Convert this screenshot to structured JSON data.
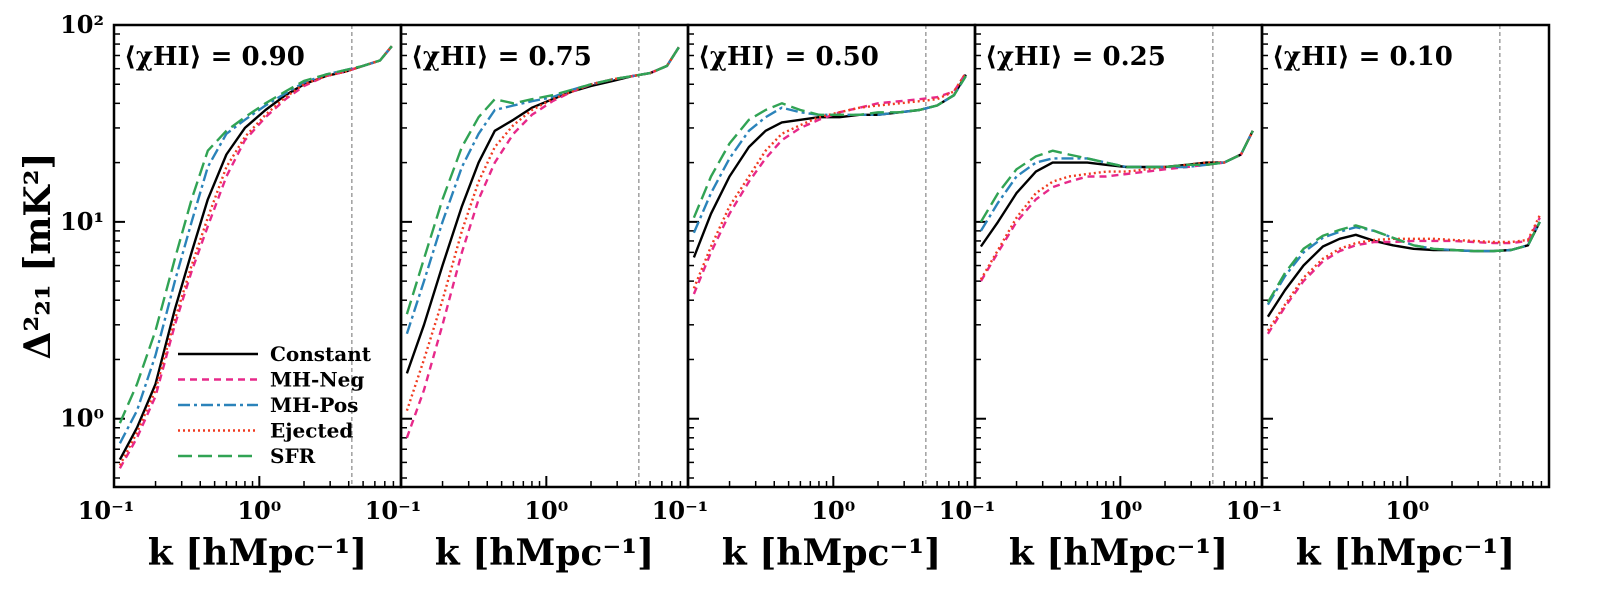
{
  "chart_data": {
    "type": "line",
    "ylabel": "Δ²₂₁ [mK²]",
    "xlabel": "k [hMpc⁻¹]",
    "xscale": "log",
    "yscale": "log",
    "xlim": [
      0.105,
      9.0
    ],
    "ylim": [
      0.45,
      100
    ],
    "x_ticks": [
      {
        "value": 0.1,
        "label": "10⁻¹"
      },
      {
        "value": 1,
        "label": "10⁰"
      }
    ],
    "y_ticks": [
      {
        "value": 1,
        "label": "10⁰"
      },
      {
        "value": 10,
        "label": "10¹"
      },
      {
        "value": 100,
        "label": "10²"
      }
    ],
    "vline_k": 4.2,
    "legend": {
      "position": "lower-right of first panel"
    },
    "series_styles": [
      {
        "name": "Constant",
        "color": "#000000",
        "dash": ""
      },
      {
        "name": "MH-Neg",
        "color": "#e7298a",
        "dash": "7,5"
      },
      {
        "name": "MH-Pos",
        "color": "#2b83ba",
        "dash": "12,4,3,4"
      },
      {
        "name": "Ejected",
        "color": "#f03b20",
        "dash": "2,3"
      },
      {
        "name": "SFR",
        "color": "#31a354",
        "dash": "14,6"
      }
    ],
    "x": [
      0.115,
      0.15,
      0.2,
      0.27,
      0.35,
      0.45,
      0.6,
      0.8,
      1.1,
      1.5,
      2,
      2.8,
      3.8,
      5,
      6.5,
      7.8
    ],
    "panels": [
      {
        "title": "⟨χHI⟩ = 0.90",
        "series": [
          {
            "name": "Constant",
            "values": [
              0.62,
              0.9,
              1.5,
              3.6,
              7,
              13,
              22,
              30,
              37,
              44,
              50,
              55,
              58,
              62,
              66,
              78
            ]
          },
          {
            "name": "MH-Neg",
            "values": [
              0.56,
              0.8,
              1.3,
              3,
              5.6,
              9.5,
              17,
              26,
              34,
              42,
              49,
              55,
              58,
              62,
              66,
              78
            ]
          },
          {
            "name": "MH-Pos",
            "values": [
              0.75,
              1.1,
              2.1,
              5,
              10,
              19,
              28,
              33,
              39,
              45,
              51,
              56,
              59,
              62,
              66,
              78
            ]
          },
          {
            "name": "Ejected",
            "values": [
              0.58,
              0.85,
              1.4,
              3.2,
              6,
              10.5,
              19,
              27,
              35,
              43,
              50,
              55,
              58,
              62,
              66,
              78
            ]
          },
          {
            "name": "SFR",
            "values": [
              0.95,
              1.5,
              2.8,
              6.5,
              13,
              23,
              29,
              34,
              40,
              46,
              52,
              56,
              59,
              62,
              66,
              78
            ]
          }
        ]
      },
      {
        "title": "⟨χHI⟩ = 0.75",
        "series": [
          {
            "name": "Constant",
            "values": [
              1.7,
              3,
              6,
              12,
              20,
              29,
              33,
              38,
              42,
              46,
              49,
              52,
              55,
              57,
              62,
              77
            ]
          },
          {
            "name": "MH-Neg",
            "values": [
              0.8,
              1.4,
              3,
              7,
              13,
              20,
              28,
              35,
              41,
              46,
              50,
              53,
              55,
              57,
              62,
              77
            ]
          },
          {
            "name": "MH-Pos",
            "values": [
              2.7,
              5,
              10,
              19,
              28,
              37,
              39,
              41,
              43,
              47,
              50,
              53,
              55,
              57,
              62,
              77
            ]
          },
          {
            "name": "Ejected",
            "values": [
              1.1,
              2,
              4,
              9,
              16,
              24,
              31,
              37,
              42,
              46,
              50,
              53,
              55,
              57,
              62,
              77
            ]
          },
          {
            "name": "SFR",
            "values": [
              3.4,
              6.5,
              13,
              24,
              34,
              42,
              40,
              42,
              44,
              47,
              50,
              53,
              55,
              57,
              62,
              77
            ]
          }
        ]
      },
      {
        "title": "⟨χHI⟩ = 0.50",
        "series": [
          {
            "name": "Constant",
            "values": [
              6.6,
              11,
              17,
              24,
              29,
              32,
              33,
              34,
              34,
              35,
              35,
              36,
              37,
              39,
              44,
              56
            ]
          },
          {
            "name": "MH-Neg",
            "values": [
              4.3,
              7,
              11,
              16,
              21,
              26,
              30,
              33,
              36,
              38,
              40,
              41,
              42,
              43,
              46,
              57
            ]
          },
          {
            "name": "MH-Pos",
            "values": [
              8.8,
              14,
              21,
              29,
              34,
              38,
              36,
              35,
              35,
              35,
              35,
              36,
              37,
              39,
              44,
              55
            ]
          },
          {
            "name": "Ejected",
            "values": [
              4.6,
              7.5,
              12,
              17,
              23,
              28,
              31,
              34,
              36,
              38,
              39,
              40,
              41,
              42,
              46,
              57
            ]
          },
          {
            "name": "SFR",
            "values": [
              10.5,
              17,
              25,
              33,
              37,
              40,
              37,
              35,
              35,
              35,
              36,
              36,
              37,
              39,
              44,
              55
            ]
          }
        ]
      },
      {
        "title": "⟨χHI⟩ = 0.25",
        "series": [
          {
            "name": "Constant",
            "values": [
              7.5,
              10,
              14,
              18,
              20,
              20,
              20,
              19.5,
              19,
              19,
              19,
              19.5,
              20,
              20,
              22,
              29
            ]
          },
          {
            "name": "MH-Neg",
            "values": [
              5,
              7,
              10,
              13,
              15,
              16,
              17,
              17,
              17.5,
              18,
              18.5,
              19,
              19.5,
              20,
              22,
              29
            ]
          },
          {
            "name": "MH-Pos",
            "values": [
              9,
              12.5,
              17,
              20,
              21,
              21,
              21,
              20,
              19,
              19,
              19,
              19,
              19.5,
              20,
              22,
              29
            ]
          },
          {
            "name": "Ejected",
            "values": [
              5.1,
              7.2,
              10.5,
              14,
              16,
              17,
              17.5,
              18,
              18,
              18.5,
              19,
              19.5,
              20,
              20,
              22,
              29
            ]
          },
          {
            "name": "SFR",
            "values": [
              10,
              14,
              18.5,
              21.5,
              23,
              22,
              21,
              20,
              19,
              19,
              19,
              19.5,
              19.5,
              20,
              22,
              29
            ]
          }
        ]
      },
      {
        "title": "⟨χHI⟩ = 0.10",
        "series": [
          {
            "name": "Constant",
            "values": [
              3.3,
              4.5,
              6,
              7.5,
              8.2,
              8.6,
              8,
              7.6,
              7.3,
              7.2,
              7.2,
              7.1,
              7.1,
              7.2,
              7.6,
              10
            ]
          },
          {
            "name": "MH-Neg",
            "values": [
              2.7,
              3.7,
              5,
              6.3,
              7.1,
              7.6,
              7.9,
              7.9,
              8,
              8,
              8,
              7.9,
              7.8,
              7.8,
              8,
              10.5
            ]
          },
          {
            "name": "MH-Pos",
            "values": [
              3.8,
              5.3,
              7,
              8.3,
              8.9,
              9.4,
              9,
              8.3,
              7.6,
              7.3,
              7.2,
              7.1,
              7.1,
              7.2,
              7.6,
              10
            ]
          },
          {
            "name": "Ejected",
            "values": [
              2.8,
              3.8,
              5.2,
              6.5,
              7.3,
              7.8,
              8.1,
              8.2,
              8.2,
              8.2,
              8.1,
              8,
              7.9,
              7.9,
              8.1,
              10.8
            ]
          },
          {
            "name": "SFR",
            "values": [
              3.9,
              5.5,
              7.3,
              8.5,
              9.1,
              9.6,
              9,
              8.3,
              7.6,
              7.3,
              7.2,
              7.1,
              7.1,
              7.2,
              7.6,
              10
            ]
          }
        ]
      }
    ]
  }
}
